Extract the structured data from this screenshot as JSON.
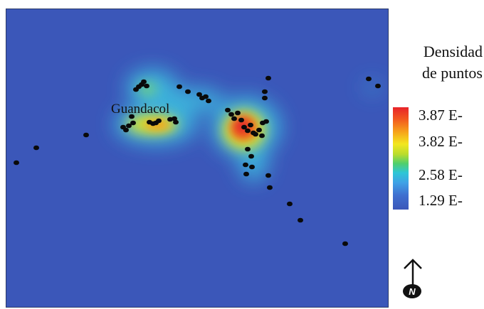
{
  "map": {
    "place_label": "Guandacol",
    "background_color": "#3b57b9",
    "points": [
      [
        22,
        228
      ],
      [
        50,
        207
      ],
      [
        120,
        189
      ],
      [
        172,
        178
      ],
      [
        176,
        182
      ],
      [
        180,
        176
      ],
      [
        184,
        163
      ],
      [
        186,
        172
      ],
      [
        190,
        125
      ],
      [
        194,
        121
      ],
      [
        198,
        118
      ],
      [
        201,
        114
      ],
      [
        205,
        120
      ],
      [
        209,
        171
      ],
      [
        214,
        173
      ],
      [
        218,
        172
      ],
      [
        222,
        169
      ],
      [
        238,
        167
      ],
      [
        244,
        166
      ],
      [
        246,
        171
      ],
      [
        251,
        121
      ],
      [
        263,
        128
      ],
      [
        279,
        132
      ],
      [
        283,
        137
      ],
      [
        288,
        135
      ],
      [
        292,
        141
      ],
      [
        319,
        154
      ],
      [
        324,
        160
      ],
      [
        328,
        166
      ],
      [
        333,
        158
      ],
      [
        338,
        168
      ],
      [
        342,
        178
      ],
      [
        347,
        183
      ],
      [
        351,
        175
      ],
      [
        355,
        186
      ],
      [
        358,
        188
      ],
      [
        363,
        182
      ],
      [
        368,
        172
      ],
      [
        367,
        190
      ],
      [
        371,
        128
      ],
      [
        371,
        137
      ],
      [
        373,
        170
      ],
      [
        376,
        109
      ],
      [
        347,
        209
      ],
      [
        352,
        219
      ],
      [
        344,
        231
      ],
      [
        345,
        244
      ],
      [
        353,
        234
      ],
      [
        376,
        246
      ],
      [
        378,
        263
      ],
      [
        406,
        286
      ],
      [
        421,
        309
      ],
      [
        484,
        342
      ],
      [
        517,
        110
      ],
      [
        530,
        120
      ]
    ]
  },
  "legend": {
    "title_line1": "Densidad",
    "title_line2": "de puntos",
    "ticks": [
      "3.87 E-",
      "3.82 E-",
      "2.58 E-",
      "1.29 E-"
    ],
    "colors": [
      "#e8232a",
      "#f3e71e",
      "#2ec6d6",
      "#3b57b9"
    ]
  },
  "north_arrow": {
    "letter": "N"
  }
}
